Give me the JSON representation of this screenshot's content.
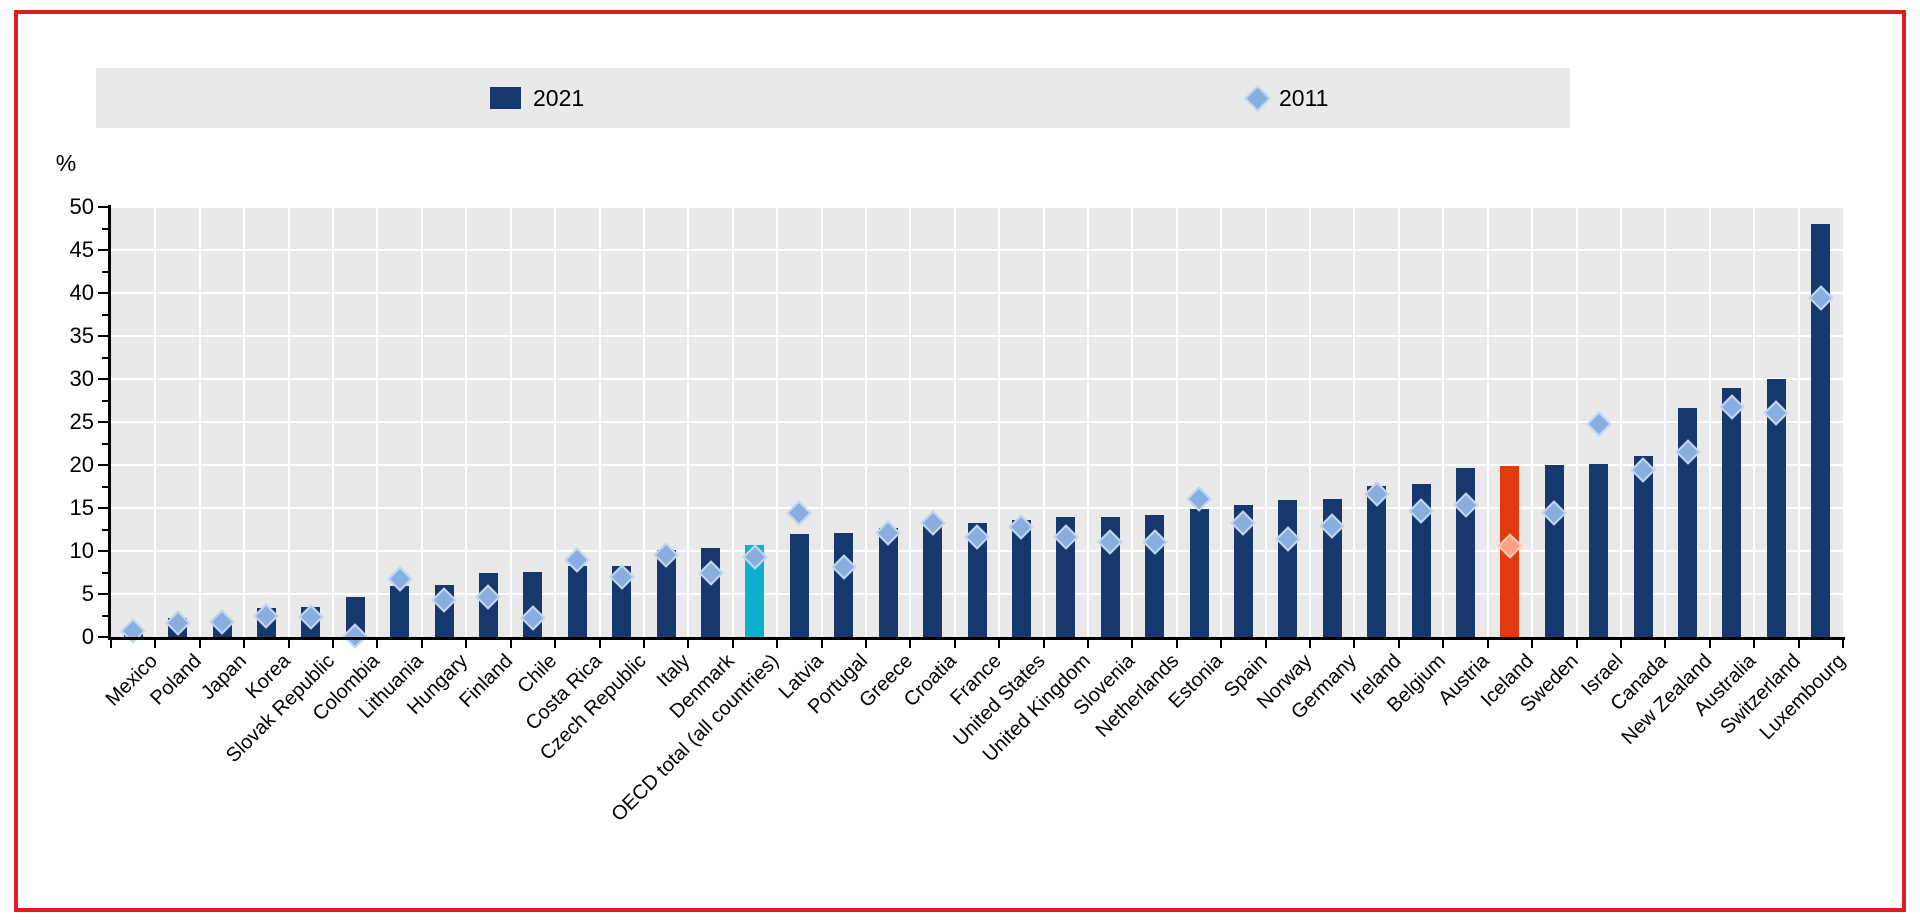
{
  "frame": {
    "border_color": "#dd1b24"
  },
  "legend": {
    "items": [
      {
        "label": "2021",
        "marker": "bar-swatch",
        "color": "#17386d"
      },
      {
        "label": "2011",
        "marker": "diamond-swatch",
        "color": "#87aede"
      }
    ]
  },
  "y_axis": {
    "unit_label": "%",
    "tick_labels": [
      "0",
      "5",
      "10",
      "15",
      "20",
      "25",
      "30",
      "35",
      "40",
      "45",
      "50"
    ]
  },
  "chart_data": {
    "type": "bar",
    "title": "",
    "xlabel": "",
    "ylabel": "%",
    "ylim": [
      0,
      50
    ],
    "grid": true,
    "legend_position": "top",
    "categories": [
      "Mexico",
      "Poland",
      "Japan",
      "Korea",
      "Slovak Republic",
      "Colombia",
      "Lithuania",
      "Hungary",
      "Finland",
      "Chile",
      "Costa Rica",
      "Czech Republic",
      "Italy",
      "Denmark",
      "OECD total (all countries)",
      "Latvia",
      "Portugal",
      "Greece",
      "Croatia",
      "France",
      "United States",
      "United Kingdom",
      "Slovenia",
      "Netherlands",
      "Estonia",
      "Spain",
      "Norway",
      "Germany",
      "Ireland",
      "Belgium",
      "Austria",
      "Iceland",
      "Sweden",
      "Israel",
      "Canada",
      "New Zealand",
      "Australia",
      "Switzerland",
      "Luxembourg"
    ],
    "series": [
      {
        "name": "2021",
        "style": "bar",
        "values": [
          1.0,
          2.2,
          2.1,
          3.4,
          3.5,
          4.6,
          5.9,
          6.1,
          7.4,
          7.6,
          8.2,
          8.3,
          10.1,
          10.4,
          10.7,
          12.0,
          12.1,
          12.7,
          13.2,
          13.2,
          13.6,
          13.9,
          14.0,
          14.2,
          14.9,
          15.3,
          15.9,
          16.1,
          17.6,
          17.8,
          19.7,
          19.9,
          20.0,
          20.1,
          21.0,
          26.6,
          28.9,
          30.0,
          48.0
        ]
      },
      {
        "name": "2011",
        "style": "diamond",
        "values": [
          0.7,
          1.6,
          1.7,
          2.4,
          2.3,
          0.1,
          6.7,
          4.3,
          4.6,
          2.2,
          9.0,
          7.0,
          9.5,
          7.5,
          9.3,
          14.4,
          8.1,
          12.1,
          13.3,
          11.6,
          12.8,
          11.6,
          11.1,
          11.1,
          16.1,
          13.2,
          11.4,
          12.9,
          16.6,
          14.6,
          15.3,
          10.6,
          14.4,
          24.8,
          19.4,
          21.5,
          26.7,
          26.0,
          39.4
        ]
      }
    ],
    "colors": {
      "bar_default": "#17386d",
      "diamond_default": "#87aede",
      "diamond_border": "#c3d6ef",
      "plot_background": "#e9e9e9",
      "gridline": "#ffffff"
    },
    "special_bars": {
      "14": {
        "bar": "#0eb0cb"
      },
      "31": {
        "bar": "#e13a0e",
        "diamond": "#f9a188",
        "diamond_border": "#fbcab9"
      }
    }
  }
}
